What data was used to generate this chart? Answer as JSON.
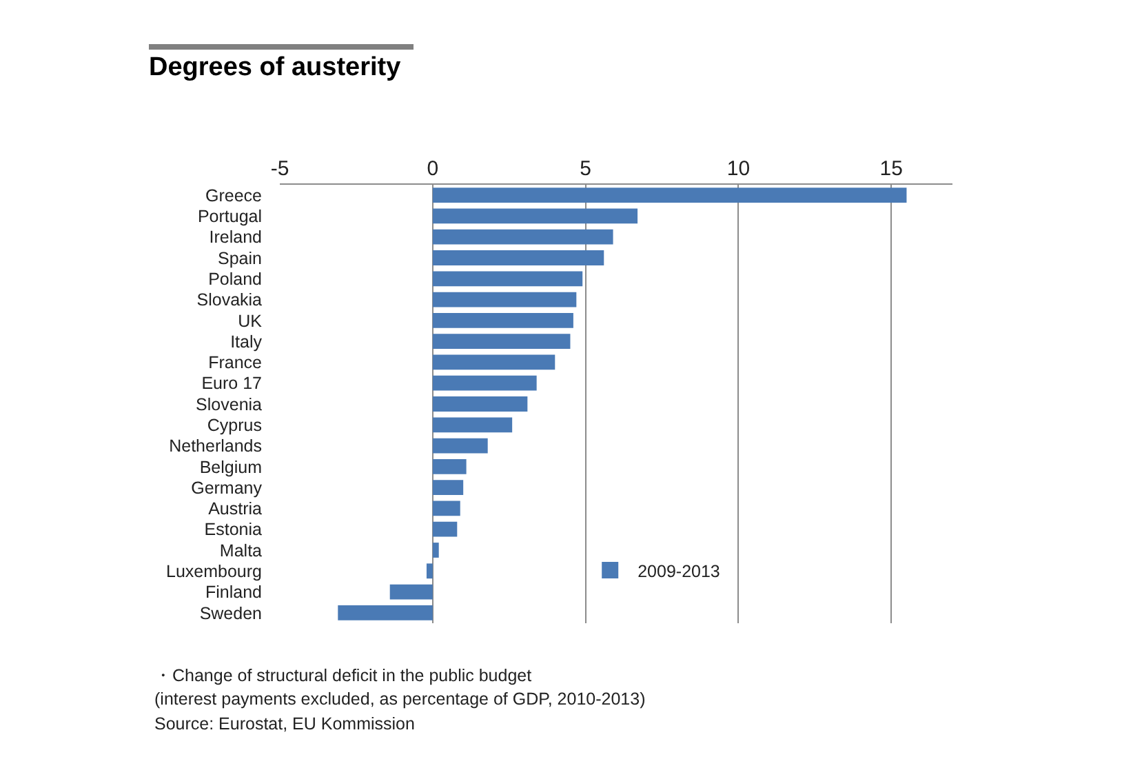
{
  "chart_data": {
    "type": "bar",
    "orientation": "horizontal",
    "title": "Degrees of austerity",
    "categories": [
      "Greece",
      "Portugal",
      "Ireland",
      "Spain",
      "Poland",
      "Slovakia",
      "UK",
      "Italy",
      "France",
      "Euro 17",
      "Slovenia",
      "Cyprus",
      "Netherlands",
      "Belgium",
      "Germany",
      "Austria",
      "Estonia",
      "Malta",
      "Luxembourg",
      "Finland",
      "Sweden"
    ],
    "series": [
      {
        "name": "2009-2013",
        "color": "#4a7ab5",
        "values": [
          15.5,
          6.7,
          5.9,
          5.6,
          4.9,
          4.7,
          4.6,
          4.5,
          4.0,
          3.4,
          3.1,
          2.6,
          1.8,
          1.1,
          1.0,
          0.9,
          0.8,
          0.2,
          -0.2,
          -1.4,
          -3.1
        ]
      }
    ],
    "xlim": [
      -5,
      17
    ],
    "xticks": [
      -5,
      0,
      5,
      10,
      15
    ],
    "grid": "x",
    "legend": "bottom",
    "annotations": [
      "・Change of structural deficit in the public budget",
      "(interest payments excluded, as percentage of GDP, 2010-2013)",
      "Source: Eurostat, EU Kommission"
    ]
  }
}
